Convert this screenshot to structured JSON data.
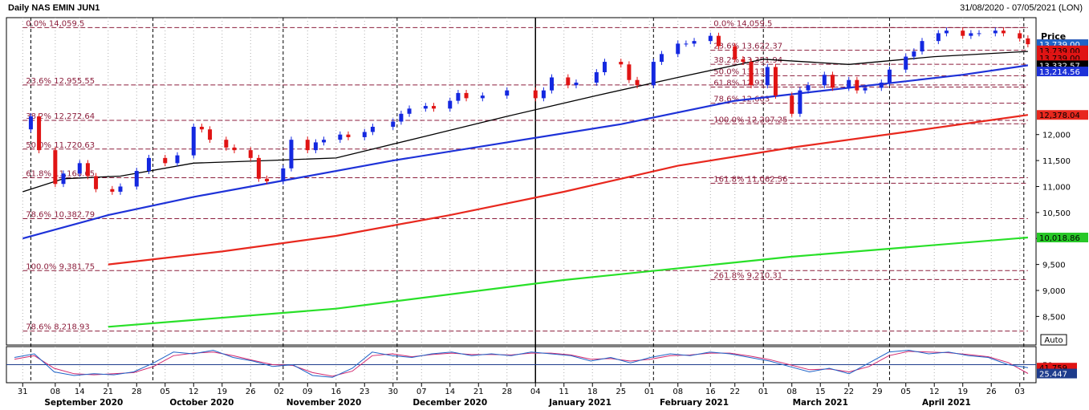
{
  "header": {
    "title": "Daily NAS EMIN JUN1",
    "range": "31/08/2020 - 07/05/2021 (LON)"
  },
  "price_label": "Price",
  "auto_label": "Auto",
  "colors": {
    "bull": "#1428e0",
    "bear": "#e01414",
    "ma_short": "#000000",
    "ma_mid": "#1e32d8",
    "ma_long": "#e8281e",
    "ma_200": "#28e028",
    "fib": "#8c1e3c",
    "stoch_k": "#1e64c8",
    "stoch_d": "#d2286e"
  },
  "chart_data": {
    "type": "candlestick",
    "title": "Daily NAS EMIN JUN1",
    "ylabel": "Price",
    "ylim": [
      7950,
      14250
    ],
    "y_ticks": [
      8500,
      9000,
      9500,
      10000,
      10500,
      11000,
      11500,
      12000
    ],
    "x_ticks": [
      {
        "label": "31",
        "date": "2020-08-31"
      },
      {
        "label": "08",
        "date": "2020-09-08"
      },
      {
        "label": "14",
        "date": "2020-09-14"
      },
      {
        "label": "21",
        "date": "2020-09-21"
      },
      {
        "label": "28",
        "date": "2020-09-28"
      },
      {
        "label": "05",
        "date": "2020-10-05"
      },
      {
        "label": "12",
        "date": "2020-10-12"
      },
      {
        "label": "19",
        "date": "2020-10-19"
      },
      {
        "label": "26",
        "date": "2020-10-26"
      },
      {
        "label": "02",
        "date": "2020-11-02"
      },
      {
        "label": "09",
        "date": "2020-11-09"
      },
      {
        "label": "16",
        "date": "2020-11-16"
      },
      {
        "label": "23",
        "date": "2020-11-23"
      },
      {
        "label": "30",
        "date": "2020-11-30"
      },
      {
        "label": "07",
        "date": "2020-12-07"
      },
      {
        "label": "14",
        "date": "2020-12-14"
      },
      {
        "label": "21",
        "date": "2020-12-21"
      },
      {
        "label": "28",
        "date": "2020-12-28"
      },
      {
        "label": "04",
        "date": "2021-01-04"
      },
      {
        "label": "11",
        "date": "2021-01-11"
      },
      {
        "label": "18",
        "date": "2021-01-18"
      },
      {
        "label": "25",
        "date": "2021-01-25"
      },
      {
        "label": "01",
        "date": "2021-02-01"
      },
      {
        "label": "08",
        "date": "2021-02-08"
      },
      {
        "label": "16",
        "date": "2021-02-16"
      },
      {
        "label": "22",
        "date": "2021-02-22"
      },
      {
        "label": "01",
        "date": "2021-03-01"
      },
      {
        "label": "08",
        "date": "2021-03-08"
      },
      {
        "label": "15",
        "date": "2021-03-15"
      },
      {
        "label": "22",
        "date": "2021-03-22"
      },
      {
        "label": "29",
        "date": "2021-03-29"
      },
      {
        "label": "05",
        "date": "2021-04-05"
      },
      {
        "label": "12",
        "date": "2021-04-12"
      },
      {
        "label": "19",
        "date": "2021-04-19"
      },
      {
        "label": "26",
        "date": "2021-04-26"
      },
      {
        "label": "03",
        "date": "2021-05-03"
      }
    ],
    "months": [
      {
        "label": "September 2020",
        "date": "2020-09-15"
      },
      {
        "label": "October 2020",
        "date": "2020-10-14"
      },
      {
        "label": "November 2020",
        "date": "2020-11-13"
      },
      {
        "label": "December 2020",
        "date": "2020-12-14"
      },
      {
        "label": "January 2021",
        "date": "2021-01-15"
      },
      {
        "label": "February 2021",
        "date": "2021-02-12"
      },
      {
        "label": "March 2021",
        "date": "2021-03-15"
      },
      {
        "label": "April 2021",
        "date": "2021-04-15"
      }
    ],
    "close_series": [
      {
        "date": "2020-08-31",
        "close": 12100
      },
      {
        "date": "2020-09-02",
        "close": 12350
      },
      {
        "date": "2020-09-04",
        "close": 11700
      },
      {
        "date": "2020-09-08",
        "close": 11050
      },
      {
        "date": "2020-09-10",
        "close": 11250
      },
      {
        "date": "2020-09-14",
        "close": 11450
      },
      {
        "date": "2020-09-16",
        "close": 11200
      },
      {
        "date": "2020-09-18",
        "close": 10950
      },
      {
        "date": "2020-09-22",
        "close": 10900
      },
      {
        "date": "2020-09-24",
        "close": 11000
      },
      {
        "date": "2020-09-28",
        "close": 11300
      },
      {
        "date": "2020-10-01",
        "close": 11550
      },
      {
        "date": "2020-10-05",
        "close": 11450
      },
      {
        "date": "2020-10-08",
        "close": 11600
      },
      {
        "date": "2020-10-12",
        "close": 12150
      },
      {
        "date": "2020-10-14",
        "close": 12100
      },
      {
        "date": "2020-10-16",
        "close": 11900
      },
      {
        "date": "2020-10-20",
        "close": 11750
      },
      {
        "date": "2020-10-22",
        "close": 11700
      },
      {
        "date": "2020-10-26",
        "close": 11550
      },
      {
        "date": "2020-10-28",
        "close": 11150
      },
      {
        "date": "2020-10-30",
        "close": 11100
      },
      {
        "date": "2020-11-03",
        "close": 11350
      },
      {
        "date": "2020-11-05",
        "close": 11900
      },
      {
        "date": "2020-11-09",
        "close": 11700
      },
      {
        "date": "2020-11-11",
        "close": 11850
      },
      {
        "date": "2020-11-13",
        "close": 11900
      },
      {
        "date": "2020-11-17",
        "close": 12000
      },
      {
        "date": "2020-11-19",
        "close": 11950
      },
      {
        "date": "2020-11-23",
        "close": 12050
      },
      {
        "date": "2020-11-25",
        "close": 12150
      },
      {
        "date": "2020-11-30",
        "close": 12250
      },
      {
        "date": "2020-12-02",
        "close": 12400
      },
      {
        "date": "2020-12-04",
        "close": 12500
      },
      {
        "date": "2020-12-08",
        "close": 12550
      },
      {
        "date": "2020-12-10",
        "close": 12500
      },
      {
        "date": "2020-12-14",
        "close": 12650
      },
      {
        "date": "2020-12-16",
        "close": 12800
      },
      {
        "date": "2020-12-18",
        "close": 12700
      },
      {
        "date": "2020-12-22",
        "close": 12750
      },
      {
        "date": "2020-12-28",
        "close": 12850
      },
      {
        "date": "2021-01-04",
        "close": 12700
      },
      {
        "date": "2021-01-06",
        "close": 12850
      },
      {
        "date": "2021-01-08",
        "close": 13100
      },
      {
        "date": "2021-01-12",
        "close": 12950
      },
      {
        "date": "2021-01-14",
        "close": 13000
      },
      {
        "date": "2021-01-19",
        "close": 13200
      },
      {
        "date": "2021-01-21",
        "close": 13400
      },
      {
        "date": "2021-01-25",
        "close": 13350
      },
      {
        "date": "2021-01-27",
        "close": 13050
      },
      {
        "date": "2021-01-29",
        "close": 12950
      },
      {
        "date": "2021-02-02",
        "close": 13400
      },
      {
        "date": "2021-02-04",
        "close": 13550
      },
      {
        "date": "2021-02-08",
        "close": 13750
      },
      {
        "date": "2021-02-10",
        "close": 13750
      },
      {
        "date": "2021-02-12",
        "close": 13800
      },
      {
        "date": "2021-02-16",
        "close": 13900
      },
      {
        "date": "2021-02-18",
        "close": 13700
      },
      {
        "date": "2021-02-22",
        "close": 13450
      },
      {
        "date": "2021-02-24",
        "close": 13400
      },
      {
        "date": "2021-02-26",
        "close": 12950
      },
      {
        "date": "2021-03-02",
        "close": 13300
      },
      {
        "date": "2021-03-04",
        "close": 12750
      },
      {
        "date": "2021-03-08",
        "close": 12400
      },
      {
        "date": "2021-03-10",
        "close": 12850
      },
      {
        "date": "2021-03-12",
        "close": 12950
      },
      {
        "date": "2021-03-16",
        "close": 13150
      },
      {
        "date": "2021-03-18",
        "close": 12900
      },
      {
        "date": "2021-03-22",
        "close": 13050
      },
      {
        "date": "2021-03-24",
        "close": 12850
      },
      {
        "date": "2021-03-26",
        "close": 12900
      },
      {
        "date": "2021-03-30",
        "close": 13000
      },
      {
        "date": "2021-04-01",
        "close": 13250
      },
      {
        "date": "2021-04-05",
        "close": 13500
      },
      {
        "date": "2021-04-07",
        "close": 13600
      },
      {
        "date": "2021-04-09",
        "close": 13800
      },
      {
        "date": "2021-04-13",
        "close": 13950
      },
      {
        "date": "2021-04-15",
        "close": 14000
      },
      {
        "date": "2021-04-19",
        "close": 13900
      },
      {
        "date": "2021-04-21",
        "close": 13950
      },
      {
        "date": "2021-04-23",
        "close": 13950
      },
      {
        "date": "2021-04-27",
        "close": 14000
      },
      {
        "date": "2021-04-29",
        "close": 13950
      },
      {
        "date": "2021-05-03",
        "close": 13850
      },
      {
        "date": "2021-05-05",
        "close": 13739
      }
    ],
    "moving_averages": [
      {
        "color": "#000000",
        "points": [
          {
            "date": "2020-08-31",
            "value": 10900
          },
          {
            "date": "2020-09-10",
            "value": 11150
          },
          {
            "date": "2020-09-24",
            "value": 11200
          },
          {
            "date": "2020-10-12",
            "value": 11450
          },
          {
            "date": "2020-10-30",
            "value": 11500
          },
          {
            "date": "2020-11-16",
            "value": 11550
          },
          {
            "date": "2020-12-07",
            "value": 11950
          },
          {
            "date": "2020-12-28",
            "value": 12350
          },
          {
            "date": "2021-01-19",
            "value": 12750
          },
          {
            "date": "2021-02-08",
            "value": 13100
          },
          {
            "date": "2021-03-01",
            "value": 13450
          },
          {
            "date": "2021-03-22",
            "value": 13350
          },
          {
            "date": "2021-04-12",
            "value": 13500
          },
          {
            "date": "2021-05-05",
            "value": 13600
          }
        ]
      },
      {
        "color": "#1e32d8",
        "points": [
          {
            "date": "2020-08-31",
            "value": 10000
          },
          {
            "date": "2020-09-21",
            "value": 10450
          },
          {
            "date": "2020-10-12",
            "value": 10800
          },
          {
            "date": "2020-11-02",
            "value": 11100
          },
          {
            "date": "2020-11-30",
            "value": 11500
          },
          {
            "date": "2020-12-28",
            "value": 11850
          },
          {
            "date": "2021-01-25",
            "value": 12200
          },
          {
            "date": "2021-02-22",
            "value": 12650
          },
          {
            "date": "2021-03-22",
            "value": 12900
          },
          {
            "date": "2021-04-19",
            "value": 13150
          },
          {
            "date": "2021-05-05",
            "value": 13332.57
          }
        ]
      },
      {
        "color": "#e8281e",
        "points": [
          {
            "date": "2020-09-21",
            "value": 9500
          },
          {
            "date": "2020-10-19",
            "value": 9750
          },
          {
            "date": "2020-11-16",
            "value": 10050
          },
          {
            "date": "2020-12-14",
            "value": 10450
          },
          {
            "date": "2021-01-11",
            "value": 10900
          },
          {
            "date": "2021-02-08",
            "value": 11400
          },
          {
            "date": "2021-03-08",
            "value": 11750
          },
          {
            "date": "2021-04-05",
            "value": 12050
          },
          {
            "date": "2021-05-05",
            "value": 12378.04
          }
        ]
      },
      {
        "color": "#28e028",
        "points": [
          {
            "date": "2020-09-21",
            "value": 8300
          },
          {
            "date": "2020-11-16",
            "value": 8650
          },
          {
            "date": "2021-01-11",
            "value": 9200
          },
          {
            "date": "2021-03-08",
            "value": 9650
          },
          {
            "date": "2021-05-05",
            "value": 10018.86
          }
        ]
      }
    ],
    "fib_levels": [
      {
        "label": "0.0%  14,059.5",
        "value": 14059.5,
        "from": "2020-08-31",
        "to": "2021-05-05"
      },
      {
        "label": "23.6%  12,955.55",
        "value": 12955.55,
        "from": "2020-08-31",
        "to": "2021-05-05"
      },
      {
        "label": "38.2%  12,272.64",
        "value": 12272.64,
        "from": "2020-08-31",
        "to": "2021-05-05"
      },
      {
        "label": "50.0%  11,720.63",
        "value": 11720.63,
        "from": "2020-08-31",
        "to": "2021-05-05"
      },
      {
        "label": "61.8%  11,168.65",
        "value": 11168.65,
        "from": "2020-08-31",
        "to": "2021-05-05"
      },
      {
        "label": "78.6%  10,382.79",
        "value": 10382.79,
        "from": "2020-08-31",
        "to": "2021-05-05"
      },
      {
        "label": "100.0%  9,381.75",
        "value": 9381.75,
        "from": "2020-08-31",
        "to": "2021-05-05"
      },
      {
        "label": "78.6%  8,218.93",
        "value": 8218.93,
        "from": "2020-08-31",
        "to": "2021-05-05"
      },
      {
        "label": "0.0%  14,059.5",
        "value": 14059.5,
        "from": "2021-02-16",
        "to": "2021-05-05"
      },
      {
        "label": "23.6%  13,622.37",
        "value": 13622.37,
        "from": "2021-02-16",
        "to": "2021-05-05"
      },
      {
        "label": "38.2%  13,351.94",
        "value": 13351.94,
        "from": "2021-02-16",
        "to": "2021-05-05"
      },
      {
        "label": "50.0%  13,133",
        "value": 13133,
        "from": "2021-02-16",
        "to": "2021-05-05"
      },
      {
        "label": "61.8%  12,914",
        "value": 12914,
        "from": "2021-02-16",
        "to": "2021-05-05"
      },
      {
        "label": "78.6%  12,603",
        "value": 12603,
        "from": "2021-02-16",
        "to": "2021-05-05"
      },
      {
        "label": "100.0%  12,207.25",
        "value": 12207.25,
        "from": "2021-02-16",
        "to": "2021-05-05"
      },
      {
        "label": "161.8%  11,062.56",
        "value": 11062.56,
        "from": "2021-02-16",
        "to": "2021-05-05"
      },
      {
        "label": "261.8%  9,210.31",
        "value": 9210.31,
        "from": "2021-02-16",
        "to": "2021-05-05"
      }
    ],
    "price_tags": [
      {
        "label": "13,739.00",
        "value": 13739,
        "color": "#e01414",
        "bold": true
      },
      {
        "label": "13,739.00",
        "value": 13739,
        "color": "#1e64c8"
      },
      {
        "label": "13,739.00",
        "value": 13620,
        "color": "#e01414"
      },
      {
        "label": "13,739.00",
        "value": 13480,
        "color": "#e01414"
      },
      {
        "label": "13,739.00",
        "value": 13350,
        "color": "#e01414"
      },
      {
        "label": "13,332.57",
        "value": 13332.57,
        "color": "#000000"
      },
      {
        "label": "13,214.56",
        "value": 13214.56,
        "color": "#1e32d8"
      },
      {
        "label": "12,378.04",
        "value": 12378.04,
        "color": "#e8281e"
      },
      {
        "label": "10,018.86",
        "value": 10018.86,
        "color": "#28c828"
      }
    ],
    "vertical_markers": [
      "2020-09-02",
      "2020-10-02",
      "2020-11-03",
      "2020-12-01",
      "2021-01-04",
      "2021-02-02",
      "2021-03-01",
      "2021-04-01",
      "2021-05-04"
    ],
    "highlight_marker": "2021-01-04",
    "stochastic": {
      "ylim": [
        0,
        100
      ],
      "ticks": [
        50
      ],
      "k_label": "41.759",
      "d_label": "25.447",
      "k_values": [
        70,
        80,
        30,
        20,
        25,
        22,
        30,
        55,
        85,
        80,
        90,
        70,
        60,
        45,
        50,
        20,
        15,
        40,
        85,
        75,
        70,
        80,
        85,
        75,
        80,
        75,
        85,
        80,
        75,
        60,
        70,
        55,
        70,
        80,
        75,
        85,
        80,
        70,
        60,
        45,
        30,
        40,
        25,
        55,
        85,
        90,
        80,
        85,
        75,
        70,
        50,
        41.759
      ],
      "d_values": [
        65,
        75,
        40,
        25,
        22,
        25,
        28,
        45,
        75,
        82,
        85,
        75,
        62,
        50,
        48,
        28,
        18,
        32,
        75,
        80,
        72,
        78,
        82,
        78,
        78,
        77,
        82,
        82,
        77,
        65,
        67,
        60,
        65,
        75,
        77,
        82,
        82,
        74,
        64,
        50,
        36,
        38,
        30,
        45,
        75,
        87,
        85,
        83,
        78,
        72,
        56,
        25.447
      ]
    }
  }
}
